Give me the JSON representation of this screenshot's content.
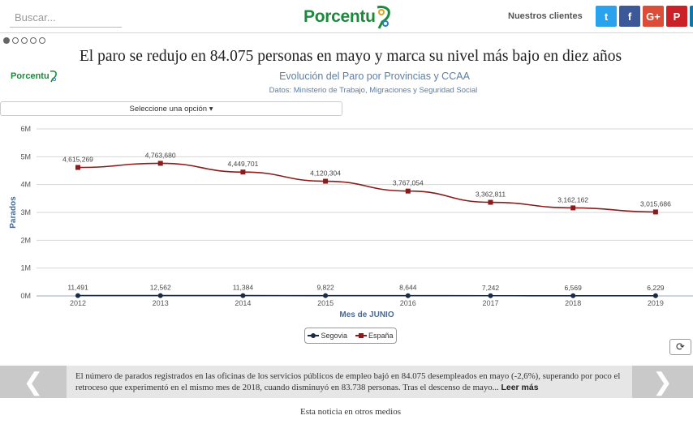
{
  "header": {
    "search_placeholder": "Buscar...",
    "logo_text": "Porcentu",
    "clients_label": "Nuestros clientes",
    "social": [
      {
        "name": "twitter",
        "glyph": "t",
        "color": "#2aa3ef"
      },
      {
        "name": "facebook",
        "glyph": "f",
        "color": "#3b5998"
      },
      {
        "name": "google-plus",
        "glyph": "G+",
        "color": "#dd4b39"
      },
      {
        "name": "pinterest",
        "glyph": "P",
        "color": "#cb2027"
      },
      {
        "name": "linkedin",
        "glyph": "in",
        "color": "#0e76a8"
      }
    ]
  },
  "slider": {
    "dots": 5,
    "active": 0
  },
  "article": {
    "headline": "El paro se redujo en 84.075 personas en mayo y marca su nivel más bajo en diez años"
  },
  "chart_header": {
    "mini_logo_text": "Porcentu",
    "title": "Evolución del Paro por Provincias y CCAA",
    "subtitle": "Datos: Ministerio de Trabajo, Migraciones y Seguridad Social",
    "selector_label": "Seleccione una opción"
  },
  "chart_data": {
    "type": "line",
    "title": "Evolución del Paro por Provincias y CCAA",
    "xlabel": "Mes de JUNIO",
    "ylabel": "Parados",
    "categories": [
      "2012",
      "2013",
      "2014",
      "2015",
      "2016",
      "2017",
      "2018",
      "2019"
    ],
    "y_ticks": [
      "0M",
      "1M",
      "2M",
      "3M",
      "4M",
      "5M",
      "6M"
    ],
    "ylim": [
      0,
      6000000
    ],
    "series": [
      {
        "name": "Segovia",
        "color": "#1a2b44",
        "values": [
          11491,
          12562,
          11384,
          9822,
          8644,
          7242,
          6569,
          6229
        ],
        "labels": [
          "11,491",
          "12,562",
          "11,384",
          "9,822",
          "8,644",
          "7,242",
          "6,569",
          "6,229"
        ]
      },
      {
        "name": "España",
        "color": "#8b1a1a",
        "values": [
          4615269,
          4763680,
          4449701,
          4120304,
          3767054,
          3362811,
          3162162,
          3015686
        ],
        "labels": [
          "4,615,269",
          "4,763,680",
          "4,449,701",
          "4,120,304",
          "3,767,054",
          "3,362,811",
          "3,162,162",
          "3,015,686"
        ]
      }
    ]
  },
  "news": {
    "text": "El número de parados registrados en las oficinas de los servicios públicos de empleo bajó en 84.075 desempleados en mayo (-2,6%), superando por poco el retroceso que experimentó en el mismo mes de 2018, cuando disminuyó en 83.738 personas. Tras el descenso de mayo...",
    "read_more": "Leer más",
    "prev_glyph": "❮",
    "next_glyph": "❯"
  },
  "footer": {
    "other_media": "Esta noticia en otros medios"
  },
  "refresh_glyph": "⟳"
}
